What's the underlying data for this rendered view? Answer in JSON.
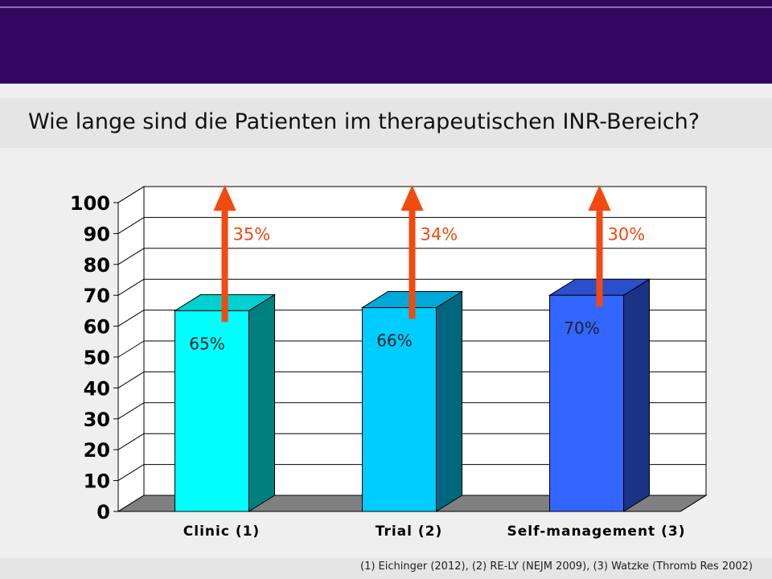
{
  "header": {
    "title": "Wie lange sind die Patienten im therapeutischen INR-Bereich?"
  },
  "footer": {
    "references": "(1) Eichinger (2012), (2) RE-LY (NEJM 2009), (3) Watzke (Thromb Res 2002)"
  },
  "colors": {
    "header_band": "#33065f",
    "arrow": "#f24a10",
    "floor": "#808080"
  },
  "chart_data": {
    "type": "bar",
    "style": "3d-column",
    "categories": [
      "Clinic (1)",
      "Trial (2)",
      "Self-management (3)"
    ],
    "values": [
      65,
      66,
      70
    ],
    "value_labels": [
      "65%",
      "66%",
      "70%"
    ],
    "gap_labels": [
      "35%",
      "34%",
      "30%"
    ],
    "yticks": [
      "0",
      "10",
      "20",
      "30",
      "40",
      "50",
      "60",
      "70",
      "80",
      "90",
      "100"
    ],
    "ylim": [
      0,
      100
    ],
    "grid": true,
    "legend": "none",
    "bar_colors": [
      {
        "front": "#00ffff",
        "side": "#007f7f",
        "top": "#00d0d0"
      },
      {
        "front": "#00ccff",
        "side": "#006680",
        "top": "#00a8d8"
      },
      {
        "front": "#3366ff",
        "side": "#1a3385",
        "top": "#2a4fcc"
      }
    ]
  }
}
